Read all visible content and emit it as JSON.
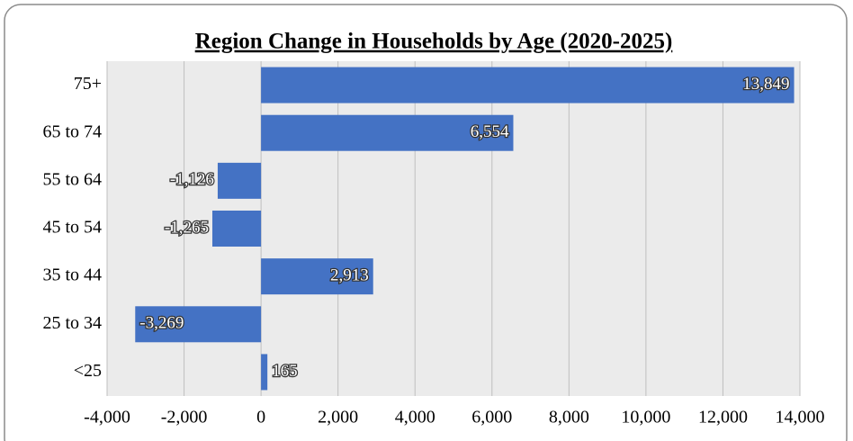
{
  "chart_data": {
    "type": "hbar",
    "title": "Region Change in Households by Age (2020-2025)",
    "categories": [
      "75+",
      "65 to 74",
      "55 to 64",
      "45 to 54",
      "35 to 44",
      "25 to 34",
      "<25"
    ],
    "values": [
      13849,
      6554,
      -1126,
      -1265,
      2913,
      -3269,
      165
    ],
    "value_labels": [
      "13,849",
      "6,554",
      "-1,126",
      "-1,265",
      "2,913",
      "-3,269",
      "165"
    ],
    "color": "#4472c4",
    "xlim": [
      -4000,
      14000
    ],
    "xticks": [
      {
        "value": -4000,
        "label": "-4,000"
      },
      {
        "value": -2000,
        "label": "-2,000"
      },
      0,
      {
        "value": 2000,
        "label": "2,000"
      },
      {
        "value": 4000,
        "label": "4,000"
      },
      {
        "value": 6000,
        "label": "6,000"
      },
      {
        "value": 8000,
        "label": "8,000"
      },
      {
        "value": 10000,
        "label": "10,000"
      },
      {
        "value": 12000,
        "label": "12,000"
      },
      {
        "value": 14000,
        "label": "14,000"
      }
    ],
    "grid": true
  }
}
